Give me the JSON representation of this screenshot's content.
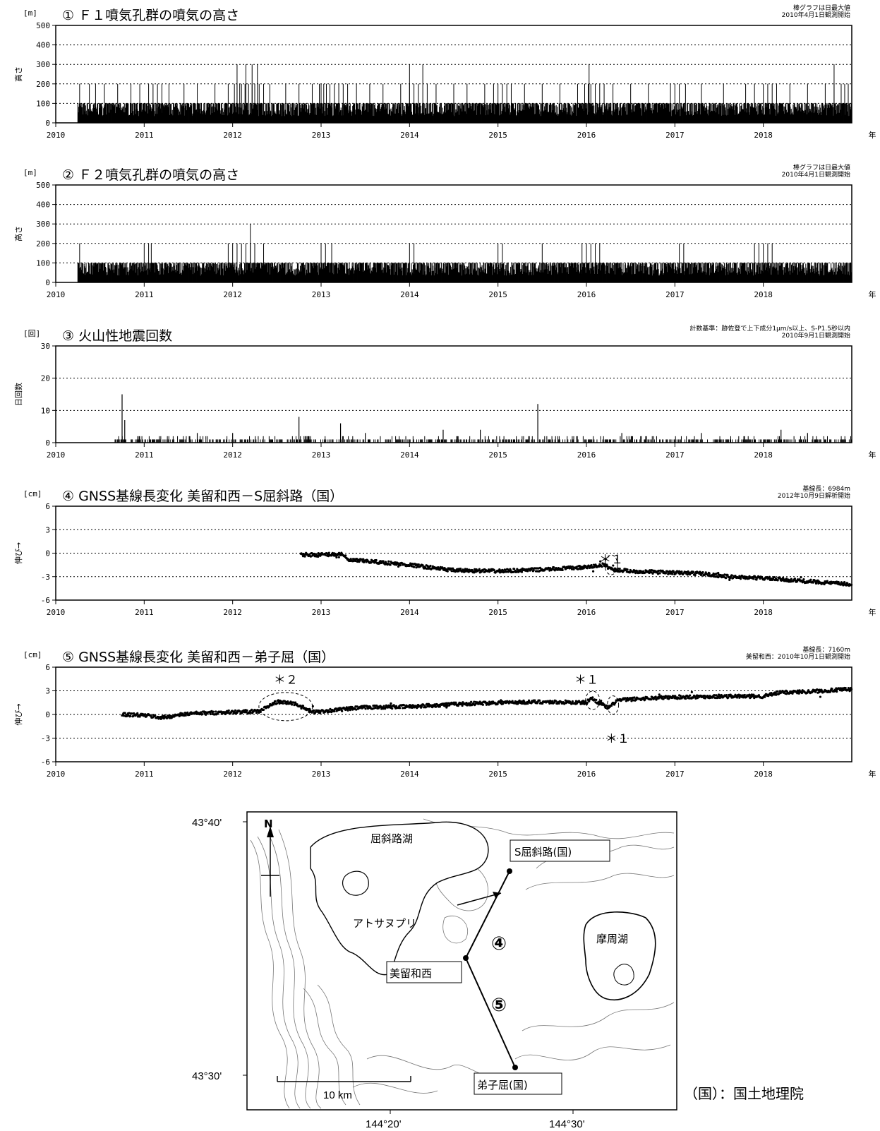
{
  "x_axis": {
    "ticks": [
      "2010",
      "2011",
      "2012",
      "2013",
      "2014",
      "2015",
      "2016",
      "2017",
      "2018"
    ],
    "unit_label": "年",
    "range": [
      2010,
      2019
    ]
  },
  "chart_data": [
    {
      "id": "f1",
      "type": "bar",
      "number": "①",
      "title": "Ｆ１噴気孔群の噴気の高さ",
      "unit": "[m]",
      "ylabel": "高さ",
      "notes": [
        "棒グラフは日最大値",
        "2010年4月1日観測開始"
      ],
      "ylim": [
        0,
        500
      ],
      "yticks": [
        0,
        100,
        200,
        300,
        400,
        500
      ],
      "start": 2010.25,
      "typical": 100,
      "spikes_200": [
        2010.27,
        2010.38,
        2010.45,
        2010.55,
        2010.7,
        2010.85,
        2010.95,
        2011.05,
        2011.1,
        2011.15,
        2011.2,
        2011.28,
        2011.45,
        2011.6,
        2011.8,
        2011.95,
        2012.02,
        2012.05,
        2012.08,
        2012.1,
        2012.14,
        2012.18,
        2012.22,
        2012.25,
        2012.3,
        2012.35,
        2012.42,
        2012.6,
        2012.75,
        2012.9,
        2012.98,
        2013.0,
        2013.03,
        2013.06,
        2013.1,
        2013.15,
        2013.2,
        2013.25,
        2013.3,
        2013.4,
        2013.55,
        2013.7,
        2013.9,
        2014.0,
        2014.05,
        2014.1,
        2014.2,
        2014.3,
        2014.5,
        2014.65,
        2014.85,
        2014.95,
        2015.0,
        2015.05,
        2015.1,
        2015.15,
        2015.3,
        2015.5,
        2015.7,
        2015.9,
        2015.98,
        2016.02,
        2016.05,
        2016.1,
        2016.15,
        2016.2,
        2016.3,
        2016.5,
        2016.7,
        2016.95,
        2017.0,
        2017.05,
        2017.12,
        2017.3,
        2017.55,
        2017.8,
        2017.9,
        2018.0,
        2018.05,
        2018.1,
        2018.15,
        2018.3,
        2018.5,
        2018.7,
        2018.8,
        2018.88,
        2018.92,
        2018.96
      ],
      "spikes_300": [
        2012.05,
        2012.15,
        2012.22,
        2012.28,
        2014.0,
        2014.15,
        2016.03,
        2018.8
      ]
    },
    {
      "id": "f2",
      "type": "bar",
      "number": "②",
      "title": "Ｆ２噴気孔群の噴気の高さ",
      "unit": "[m]",
      "ylabel": "高さ",
      "notes": [
        "棒グラフは日最大値",
        "2010年4月1日観測開始"
      ],
      "ylim": [
        0,
        500
      ],
      "yticks": [
        0,
        100,
        200,
        300,
        400,
        500
      ],
      "start": 2010.25,
      "typical": 100,
      "spikes_200": [
        2010.27,
        2011.0,
        2011.05,
        2011.08,
        2011.95,
        2012.0,
        2012.05,
        2012.1,
        2012.15,
        2012.2,
        2012.25,
        2012.35,
        2013.0,
        2013.05,
        2013.12,
        2014.0,
        2014.05,
        2015.0,
        2015.05,
        2015.5,
        2015.95,
        2016.0,
        2016.05,
        2016.1,
        2016.15,
        2017.05,
        2017.1,
        2017.9,
        2017.95,
        2018.0,
        2018.05,
        2018.1
      ],
      "spikes_300": [
        2012.2
      ]
    },
    {
      "id": "eq",
      "type": "bar",
      "number": "③",
      "title": "火山性地震回数",
      "unit": "[回]",
      "ylabel": "日回数",
      "notes": [
        "計数基準：跡佐登で上下成分1μm/s以上、S-P1.5秒以内",
        "2010年9月1日観測開始"
      ],
      "ylim": [
        0,
        30
      ],
      "yticks": [
        0,
        10,
        20,
        30
      ],
      "start": 2010.67,
      "peaks": [
        {
          "x": 2010.75,
          "y": 15
        },
        {
          "x": 2010.78,
          "y": 7
        },
        {
          "x": 2011.6,
          "y": 3
        },
        {
          "x": 2012.0,
          "y": 3
        },
        {
          "x": 2012.75,
          "y": 8
        },
        {
          "x": 2013.22,
          "y": 6
        },
        {
          "x": 2013.5,
          "y": 3
        },
        {
          "x": 2014.38,
          "y": 4
        },
        {
          "x": 2014.8,
          "y": 4
        },
        {
          "x": 2015.45,
          "y": 12
        },
        {
          "x": 2016.4,
          "y": 3
        },
        {
          "x": 2017.3,
          "y": 3
        },
        {
          "x": 2018.2,
          "y": 4
        },
        {
          "x": 2018.5,
          "y": 3
        }
      ]
    },
    {
      "id": "gnss4",
      "type": "scatter",
      "number": "④",
      "title": "GNSS基線長変化 美留和西－S屈斜路（国）",
      "unit": "[cm]",
      "ylabel": "伸び→",
      "notes": [
        "基線長：6984m",
        "2012年10月9日解析開始"
      ],
      "ylim": [
        -6,
        6
      ],
      "yticks": [
        6,
        3,
        0,
        -3,
        -6
      ],
      "x": [
        2012.77,
        2013.0,
        2013.25,
        2013.3,
        2013.5,
        2014.0,
        2014.5,
        2015.0,
        2015.5,
        2016.0,
        2016.2,
        2016.3,
        2016.5,
        2017.0,
        2017.3,
        2017.6,
        2018.0,
        2018.5,
        2019.0
      ],
      "y": [
        -0.2,
        -0.2,
        -0.1,
        -0.9,
        -1.0,
        -1.5,
        -2.2,
        -2.3,
        -2.1,
        -1.8,
        -1.5,
        -2.1,
        -2.3,
        -2.5,
        -2.6,
        -3.0,
        -3.2,
        -3.6,
        -4.0
      ],
      "annotations": [
        {
          "text": "＊１",
          "x": 2016.28,
          "y": -1.3
        }
      ]
    },
    {
      "id": "gnss5",
      "type": "scatter",
      "number": "⑤",
      "title": "GNSS基線長変化 美留和西－弟子屈（国）",
      "unit": "[cm]",
      "ylabel": "伸び→",
      "notes": [
        "基線長：7160m",
        "美留和西：2010年10月1日観測開始"
      ],
      "ylim": [
        -6,
        6
      ],
      "yticks": [
        6,
        3,
        0,
        -3,
        -6
      ],
      "x": [
        2010.75,
        2011.0,
        2011.2,
        2011.5,
        2012.0,
        2012.3,
        2012.5,
        2012.7,
        2012.9,
        2013.2,
        2013.5,
        2014.0,
        2014.5,
        2015.0,
        2015.5,
        2016.0,
        2016.05,
        2016.25,
        2016.35,
        2016.6,
        2017.0,
        2017.5,
        2018.0,
        2018.2,
        2018.5,
        2019.0
      ],
      "y": [
        0.0,
        -0.1,
        -0.4,
        0.1,
        0.3,
        0.4,
        1.6,
        1.4,
        0.3,
        0.6,
        0.9,
        1.0,
        1.3,
        1.5,
        1.6,
        1.5,
        2.1,
        0.8,
        1.8,
        2.0,
        2.2,
        2.3,
        2.3,
        2.8,
        2.9,
        3.2
      ],
      "annotations": [
        {
          "text": "＊２",
          "x": 2012.6,
          "y": 3.9
        },
        {
          "text": "＊１",
          "x": 2016.0,
          "y": 3.9
        },
        {
          "text": "＊１",
          "x": 2016.35,
          "y": -3.6
        }
      ]
    }
  ],
  "map": {
    "lat_labels": [
      "43°40'",
      "43°30'"
    ],
    "lon_labels": [
      "144°20'",
      "144°30'"
    ],
    "north": "N",
    "lake_kussharo": "屈斜路湖",
    "lake_mashu": "摩周湖",
    "atosanupuri": "アトサヌプリ",
    "station_s_kussharo": "S屈斜路(国)",
    "station_biruwa_nishi": "美留和西",
    "station_teshikaga": "弟子屈(国)",
    "baseline_4": "④",
    "baseline_5": "⑤",
    "scale": "10 km",
    "legend": "（国）：国土地理院"
  }
}
